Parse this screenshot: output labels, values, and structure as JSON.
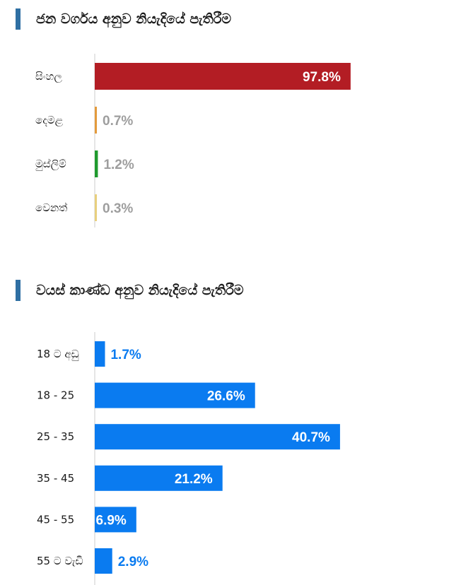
{
  "ethnicity": {
    "title": "ජන වර්ගය අනුව නියැදියේ පැතිරීම",
    "accent_color": "#2f6fa3"
  },
  "age": {
    "title": "වයස් කාණ්ඩ අනුව නියැදියේ පැතිරීම",
    "accent_color": "#2f6fa3"
  },
  "chart_data": [
    {
      "type": "bar",
      "orientation": "horizontal",
      "title": "ජන වර්ගය අනුව නියැදියේ පැතිරීම",
      "categories": [
        "සිංහල",
        "දෙමළ",
        "මුස්ලිම්",
        "වෙනත්"
      ],
      "values": [
        97.8,
        0.7,
        1.2,
        0.3
      ],
      "labels": [
        "97.8%",
        "0.7%",
        "1.2%",
        "0.3%"
      ],
      "colors": [
        "#b31d24",
        "#e39a3c",
        "#1f9a2e",
        "#e8cf7d"
      ],
      "outside_label_color": "#9e9e9e",
      "xlim": [
        0,
        100
      ],
      "grid": false,
      "legend": "none"
    },
    {
      "type": "bar",
      "orientation": "horizontal",
      "title": "වයස් කාණ්ඩ අනුව නියැදියේ පැතිරීම",
      "categories": [
        "18 ට අඩු",
        "18  -  25",
        "25  -  35",
        "35  -  45",
        "45  -  55",
        "55 ට වැඩි"
      ],
      "values": [
        1.7,
        26.6,
        40.7,
        21.2,
        6.9,
        2.9
      ],
      "labels": [
        "1.7%",
        "26.6%",
        "40.7%",
        "21.2%",
        "6.9%",
        "2.9%"
      ],
      "colors": [
        "#0a7bf0",
        "#0a7bf0",
        "#0a7bf0",
        "#0a7bf0",
        "#0a7bf0",
        "#0a7bf0"
      ],
      "outside_label_color": "#0a7bf0",
      "xlim": [
        0,
        42
      ],
      "grid": false,
      "legend": "none"
    }
  ]
}
